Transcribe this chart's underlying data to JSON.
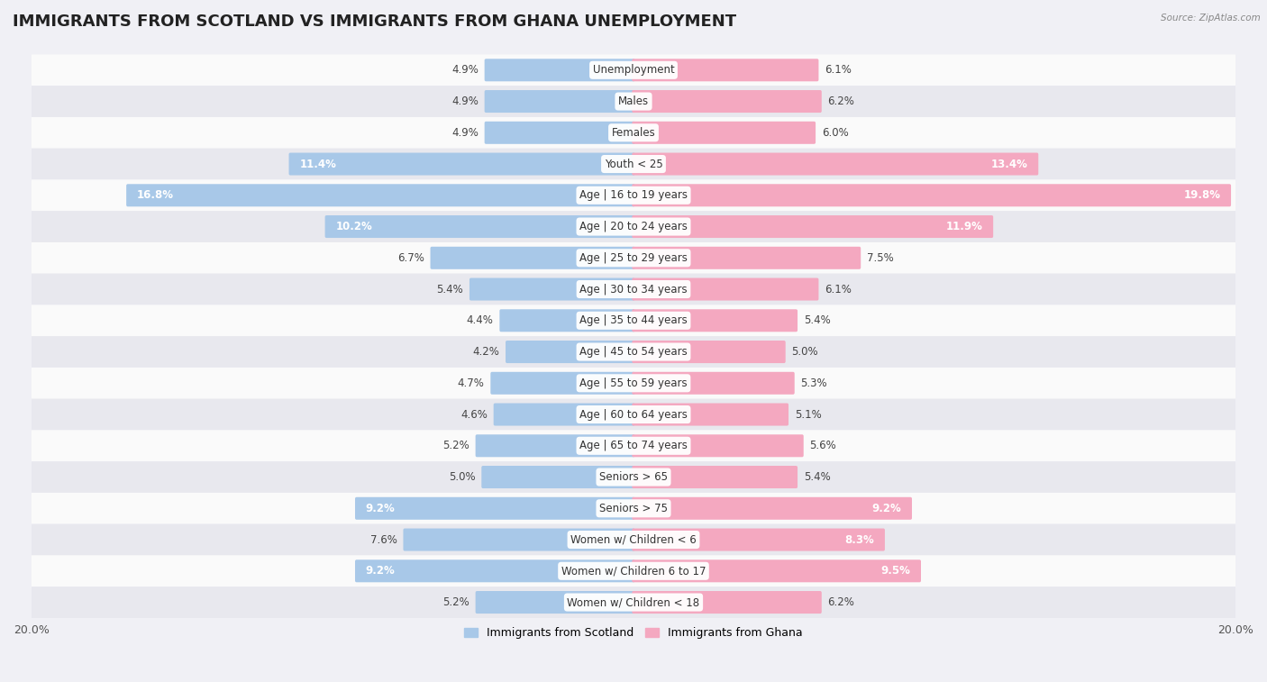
{
  "title": "IMMIGRANTS FROM SCOTLAND VS IMMIGRANTS FROM GHANA UNEMPLOYMENT",
  "source": "Source: ZipAtlas.com",
  "categories": [
    "Unemployment",
    "Males",
    "Females",
    "Youth < 25",
    "Age | 16 to 19 years",
    "Age | 20 to 24 years",
    "Age | 25 to 29 years",
    "Age | 30 to 34 years",
    "Age | 35 to 44 years",
    "Age | 45 to 54 years",
    "Age | 55 to 59 years",
    "Age | 60 to 64 years",
    "Age | 65 to 74 years",
    "Seniors > 65",
    "Seniors > 75",
    "Women w/ Children < 6",
    "Women w/ Children 6 to 17",
    "Women w/ Children < 18"
  ],
  "scotland_values": [
    4.9,
    4.9,
    4.9,
    11.4,
    16.8,
    10.2,
    6.7,
    5.4,
    4.4,
    4.2,
    4.7,
    4.6,
    5.2,
    5.0,
    9.2,
    7.6,
    9.2,
    5.2
  ],
  "ghana_values": [
    6.1,
    6.2,
    6.0,
    13.4,
    19.8,
    11.9,
    7.5,
    6.1,
    5.4,
    5.0,
    5.3,
    5.1,
    5.6,
    5.4,
    9.2,
    8.3,
    9.5,
    6.2
  ],
  "scotland_color": "#a8c8e8",
  "ghana_color": "#f4a8c0",
  "scotland_label": "Immigrants from Scotland",
  "ghana_label": "Immigrants from Ghana",
  "axis_max": 20.0,
  "bg_color": "#f0f0f5",
  "row_color_light": "#fafafa",
  "row_color_dark": "#e8e8ee",
  "title_fontsize": 13,
  "label_fontsize": 8.5,
  "value_fontsize": 8.5
}
